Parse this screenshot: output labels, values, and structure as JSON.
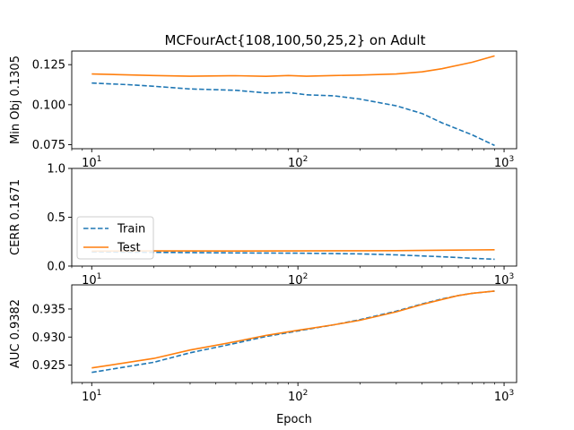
{
  "title": "MCFourAct{108,100,50,25,2} on Adult",
  "colors": {
    "train": "#1f77b4",
    "test": "#ff7f0e"
  },
  "chart_data": [
    {
      "type": "line",
      "ylabel": "Min Obj 0.1305",
      "xscale": "log",
      "xlim": [
        8,
        1150
      ],
      "ylim": [
        0.0725,
        0.1335
      ],
      "yticks": [
        0.075,
        0.1,
        0.125
      ],
      "ytick_labels": [
        "0.075",
        "0.100",
        "0.125"
      ],
      "series": [
        {
          "key": "train",
          "x": [
            10,
            15,
            20,
            30,
            50,
            70,
            90,
            110,
            150,
            200,
            300,
            400,
            500,
            700,
            900
          ],
          "y": [
            0.1135,
            0.1125,
            0.1115,
            0.1098,
            0.109,
            0.1073,
            0.1076,
            0.1062,
            0.1055,
            0.1035,
            0.0993,
            0.0945,
            0.0887,
            0.0812,
            0.0745
          ]
        },
        {
          "key": "test",
          "x": [
            10,
            20,
            30,
            50,
            70,
            90,
            110,
            150,
            200,
            300,
            400,
            500,
            700,
            900
          ],
          "y": [
            0.1192,
            0.1182,
            0.1178,
            0.1181,
            0.1177,
            0.1182,
            0.1178,
            0.1182,
            0.1185,
            0.1192,
            0.1205,
            0.1225,
            0.1265,
            0.1305
          ]
        }
      ]
    },
    {
      "type": "line",
      "ylabel": "CERR 0.1671",
      "xscale": "log",
      "xlim": [
        8,
        1150
      ],
      "ylim": [
        0,
        1
      ],
      "yticks": [
        0,
        0.5,
        1
      ],
      "ytick_labels": [
        "0.0",
        "0.5",
        "1.0"
      ],
      "legend": {
        "placement": "center-left",
        "entries": [
          {
            "key": "train",
            "label": "Train"
          },
          {
            "key": "test",
            "label": "Test"
          }
        ]
      },
      "series": [
        {
          "key": "train",
          "x": [
            10,
            20,
            50,
            100,
            200,
            300,
            500,
            700,
            900
          ],
          "y": [
            0.145,
            0.14,
            0.135,
            0.132,
            0.125,
            0.115,
            0.095,
            0.08,
            0.07
          ]
        },
        {
          "key": "test",
          "x": [
            10,
            20,
            50,
            100,
            200,
            300,
            500,
            700,
            900
          ],
          "y": [
            0.153,
            0.155,
            0.154,
            0.155,
            0.157,
            0.158,
            0.162,
            0.165,
            0.167
          ]
        }
      ]
    },
    {
      "type": "line",
      "ylabel": "AUC 0.9382",
      "xlabel": "Epoch",
      "xscale": "log",
      "xlim": [
        8,
        1150
      ],
      "ylim": [
        0.9219,
        0.9393
      ],
      "yticks": [
        0.925,
        0.93,
        0.935
      ],
      "ytick_labels": [
        "0.925",
        "0.930",
        "0.935"
      ],
      "series": [
        {
          "key": "train",
          "x": [
            10,
            20,
            30,
            50,
            70,
            100,
            150,
            200,
            300,
            400,
            500,
            600,
            700,
            800,
            900
          ],
          "y": [
            0.9237,
            0.9255,
            0.9272,
            0.9289,
            0.9301,
            0.9311,
            0.9322,
            0.9331,
            0.9346,
            0.9359,
            0.9368,
            0.9374,
            0.9378,
            0.938,
            0.9382
          ]
        },
        {
          "key": "test",
          "x": [
            10,
            20,
            30,
            50,
            70,
            100,
            150,
            200,
            300,
            400,
            500,
            600,
            700,
            800,
            900
          ],
          "y": [
            0.9245,
            0.9262,
            0.9277,
            0.9292,
            0.9303,
            0.9312,
            0.9322,
            0.933,
            0.9345,
            0.9358,
            0.9367,
            0.9374,
            0.9378,
            0.938,
            0.9382
          ]
        }
      ]
    }
  ]
}
